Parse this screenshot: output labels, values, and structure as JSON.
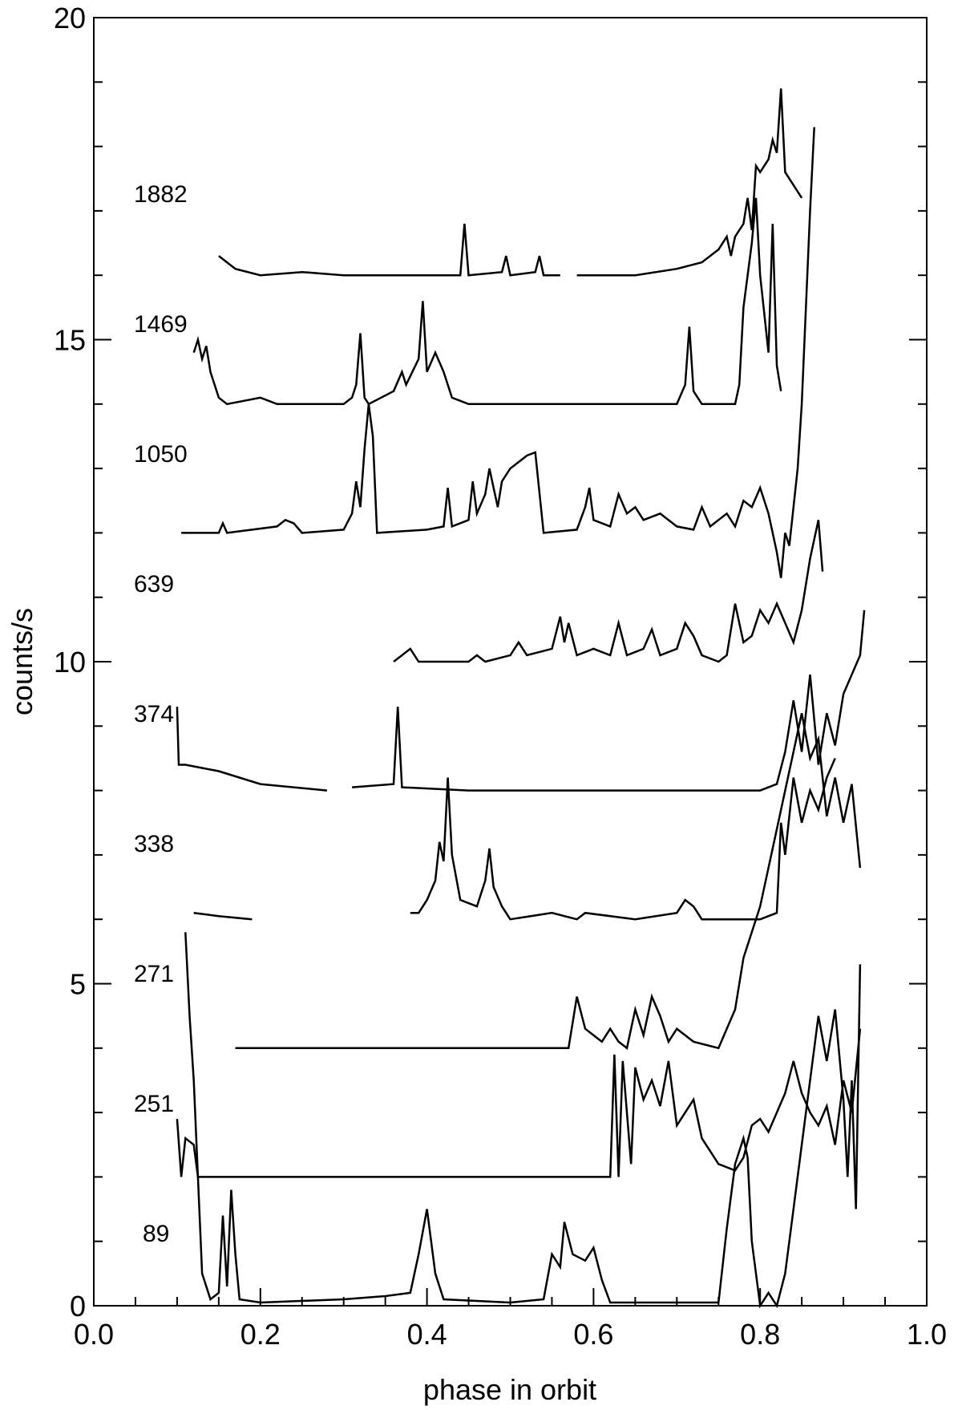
{
  "chart_data": {
    "type": "line",
    "xlabel": "phase in orbit",
    "ylabel": "counts/s",
    "xlim": [
      0,
      1
    ],
    "ylim": [
      0,
      20
    ],
    "xticks": [
      {
        "value": 0,
        "label": "0.0"
      },
      {
        "value": 0.2,
        "label": "0.2"
      },
      {
        "value": 0.4,
        "label": "0.4"
      },
      {
        "value": 0.6,
        "label": "0.6"
      },
      {
        "value": 0.8,
        "label": "0.8"
      },
      {
        "value": 1,
        "label": "1.0"
      }
    ],
    "yticks": [
      0,
      5,
      10,
      15,
      20
    ],
    "minor_xticks": [
      0.05,
      0.1,
      0.15,
      0.25,
      0.3,
      0.35,
      0.45,
      0.5,
      0.55,
      0.65,
      0.7,
      0.75,
      0.85,
      0.9,
      0.95
    ],
    "minor_yticks": [
      1,
      2,
      3,
      4,
      6,
      7,
      8,
      9,
      11,
      12,
      13,
      14,
      16,
      17,
      18,
      19
    ],
    "series": [
      {
        "name": "1882",
        "color": "#000000",
        "x": [
          0.15,
          0.17,
          0.2,
          0.25,
          0.3,
          0.35,
          0.4,
          0.44,
          0.445,
          0.45,
          0.49,
          0.495,
          0.5,
          0.53,
          0.535,
          0.54,
          0.56,
          null,
          0.58,
          0.65,
          0.7,
          0.73,
          0.75,
          0.76,
          0.765,
          0.77,
          0.78,
          0.785,
          0.79,
          0.795,
          0.8,
          0.81,
          0.815,
          0.82,
          0.825,
          0.83,
          0.84,
          0.85
        ],
        "values": [
          16.3,
          16.1,
          16,
          16.05,
          16,
          16,
          16,
          16,
          16.8,
          16,
          16.05,
          16.3,
          16,
          16.05,
          16.3,
          16,
          16,
          null,
          16,
          16,
          16.1,
          16.2,
          16.4,
          16.6,
          16.3,
          16.6,
          16.8,
          17.2,
          16.7,
          17.7,
          17.6,
          17.8,
          18.1,
          17.9,
          18.9,
          17.6,
          17.4,
          17.2
        ]
      },
      {
        "name": "1469",
        "color": "#000000",
        "x": [
          0.12,
          0.125,
          0.13,
          0.135,
          0.14,
          0.145,
          0.15,
          0.16,
          0.2,
          0.22,
          0.3,
          0.31,
          0.315,
          0.32,
          0.325,
          0.33,
          0.36,
          0.37,
          0.375,
          0.39,
          0.395,
          0.4,
          0.41,
          0.42,
          0.43,
          0.45,
          0.6,
          0.7,
          0.71,
          0.715,
          0.72,
          0.73,
          0.77,
          0.775,
          0.78,
          0.79,
          0.795,
          0.8,
          0.81,
          0.815,
          0.82,
          0.825
        ],
        "values": [
          14.8,
          15,
          14.7,
          14.9,
          14.5,
          14.3,
          14.1,
          14,
          14.1,
          14,
          14,
          14.1,
          14.3,
          15.1,
          14.1,
          14,
          14.2,
          14.5,
          14.3,
          14.7,
          15.6,
          14.5,
          14.8,
          14.5,
          14.1,
          14,
          14,
          14,
          14.3,
          15.2,
          14.2,
          14,
          14,
          14.3,
          15.5,
          16.5,
          17.2,
          16,
          14.8,
          16.8,
          14.6,
          14.2
        ]
      },
      {
        "name": "1050",
        "color": "#000000",
        "x": [
          0.105,
          0.15,
          0.155,
          0.16,
          0.22,
          0.23,
          0.24,
          0.25,
          0.3,
          0.31,
          0.315,
          0.32,
          0.325,
          0.33,
          0.335,
          0.34,
          0.4,
          0.42,
          0.425,
          0.43,
          0.45,
          0.455,
          0.46,
          0.47,
          0.475,
          0.48,
          0.485,
          0.49,
          0.5,
          0.51,
          0.52,
          0.53,
          0.54,
          0.58,
          0.59,
          0.595,
          0.6,
          0.62,
          0.63,
          0.64,
          0.65,
          0.66,
          0.68,
          0.7,
          0.72,
          0.73,
          0.74,
          0.75,
          0.76,
          0.77,
          0.78,
          0.79,
          0.8,
          0.81,
          0.82,
          0.825,
          0.83,
          0.835,
          0.84,
          0.845,
          0.85,
          0.855,
          0.86,
          0.865
        ],
        "values": [
          12,
          12,
          12.15,
          12,
          12.1,
          12.2,
          12.15,
          12,
          12.05,
          12.3,
          12.8,
          12.4,
          13.3,
          14,
          13.5,
          12,
          12.05,
          12.1,
          12.7,
          12.1,
          12.2,
          12.8,
          12.3,
          12.6,
          13,
          12.7,
          12.4,
          12.8,
          13,
          13.1,
          13.2,
          13.25,
          12,
          12.05,
          12.4,
          12.7,
          12.2,
          12.1,
          12.6,
          12.3,
          12.4,
          12.2,
          12.3,
          12.1,
          12.05,
          12.4,
          12.1,
          12.2,
          12.3,
          12.1,
          12.5,
          12.4,
          12.7,
          12.3,
          11.7,
          11.3,
          12,
          11.8,
          12.4,
          13,
          14,
          15.5,
          17,
          18.3
        ]
      },
      {
        "name": "639",
        "color": "#000000",
        "x": [
          0.36,
          0.37,
          0.38,
          0.39,
          0.45,
          0.46,
          0.47,
          0.5,
          0.51,
          0.52,
          0.55,
          0.56,
          0.565,
          0.57,
          0.58,
          0.6,
          0.62,
          0.63,
          0.64,
          0.66,
          0.67,
          0.68,
          0.7,
          0.71,
          0.72,
          0.73,
          0.75,
          0.76,
          0.77,
          0.78,
          0.79,
          0.8,
          0.81,
          0.82,
          0.83,
          0.84,
          0.85,
          0.86,
          0.87,
          0.875
        ],
        "values": [
          10,
          10.1,
          10.2,
          10,
          10,
          10.1,
          10,
          10.1,
          10.3,
          10.1,
          10.2,
          10.7,
          10.3,
          10.6,
          10.1,
          10.2,
          10.1,
          10.6,
          10.1,
          10.2,
          10.5,
          10.1,
          10.2,
          10.6,
          10.4,
          10.1,
          10,
          10.1,
          10.9,
          10.3,
          10.4,
          10.8,
          10.6,
          10.9,
          10.6,
          10.3,
          10.8,
          11.6,
          12.2,
          11.4
        ]
      },
      {
        "name": "374",
        "color": "#000000",
        "x": [
          0.1,
          0.102,
          0.11,
          0.15,
          0.2,
          0.28,
          null,
          0.31,
          0.36,
          0.365,
          0.37,
          0.45,
          0.6,
          0.7,
          0.8,
          0.82,
          0.83,
          0.84,
          0.85,
          0.86,
          0.87,
          0.88,
          0.89,
          0.9,
          0.91,
          0.92,
          0.925
        ],
        "values": [
          9.3,
          8.4,
          8.4,
          8.3,
          8.1,
          8,
          null,
          8.05,
          8.1,
          9.3,
          8.05,
          8,
          8,
          8,
          8,
          8.1,
          8.6,
          9.4,
          8.6,
          9.8,
          8.4,
          9.2,
          8.7,
          9.5,
          9.8,
          10.1,
          10.8
        ]
      },
      {
        "name": "338",
        "color": "#000000",
        "x": [
          0.12,
          0.15,
          0.19,
          null,
          0.38,
          0.39,
          0.4,
          0.41,
          0.415,
          0.42,
          0.425,
          0.43,
          0.44,
          0.46,
          0.47,
          0.475,
          0.48,
          0.49,
          0.5,
          0.55,
          0.58,
          0.59,
          0.65,
          0.7,
          0.71,
          0.72,
          0.73,
          0.8,
          0.82,
          0.825,
          0.83,
          0.84,
          0.85,
          0.86,
          0.87,
          0.88,
          0.89
        ],
        "values": [
          6.1,
          6.05,
          6,
          null,
          6.1,
          6.1,
          6.3,
          6.6,
          7.2,
          6.9,
          8.2,
          7,
          6.3,
          6.2,
          6.6,
          7.1,
          6.5,
          6.2,
          6,
          6.1,
          6,
          6.1,
          6,
          6.1,
          6.3,
          6.2,
          6,
          6,
          6.1,
          7.5,
          7,
          8.2,
          7.5,
          8,
          7.7,
          8.2,
          8.5
        ]
      },
      {
        "name": "271",
        "color": "#000000",
        "x": [
          0.17,
          0.3,
          0.5,
          0.57,
          0.575,
          0.58,
          0.59,
          0.6,
          0.61,
          0.62,
          0.63,
          0.64,
          0.65,
          0.66,
          0.67,
          0.68,
          0.69,
          0.7,
          0.72,
          0.75,
          0.76,
          0.77,
          0.78,
          0.79,
          0.8,
          0.81,
          0.82,
          0.83,
          0.84,
          0.85,
          0.86,
          0.87,
          0.88,
          0.89,
          0.9,
          0.91,
          0.92
        ],
        "values": [
          4,
          4,
          4,
          4,
          4.4,
          4.8,
          4.3,
          4.2,
          4.1,
          4.3,
          4.1,
          4,
          4.6,
          4.2,
          4.8,
          4.5,
          4.1,
          4.3,
          4.1,
          4,
          4.3,
          4.6,
          5.4,
          5.8,
          6.2,
          6.8,
          7.4,
          8,
          8.6,
          9.2,
          8.5,
          8.8,
          7.6,
          8.2,
          7.5,
          8.1,
          6.8
        ]
      },
      {
        "name": "251",
        "color": "#000000",
        "x": [
          0.1,
          0.105,
          0.11,
          0.12,
          0.125,
          0.2,
          0.3,
          0.4,
          0.5,
          0.6,
          0.62,
          0.625,
          0.63,
          0.635,
          0.645,
          0.65,
          0.66,
          0.67,
          0.68,
          0.69,
          0.7,
          0.72,
          0.73,
          0.75,
          0.77,
          0.78,
          0.79,
          0.8,
          0.81,
          0.82,
          0.83,
          0.84,
          0.85,
          0.86,
          0.87,
          0.88,
          0.89,
          0.9,
          0.91,
          0.92
        ],
        "values": [
          2.9,
          2,
          2.6,
          2.5,
          2,
          2,
          2,
          2,
          2,
          2,
          2,
          3.9,
          2,
          3.8,
          2.2,
          3.7,
          3.2,
          3.5,
          3.1,
          3.8,
          2.8,
          3.2,
          2.6,
          2.2,
          2.1,
          2.3,
          2.8,
          2.9,
          2.7,
          3,
          3.3,
          3.8,
          3.3,
          3,
          2.8,
          3.1,
          2.5,
          3.5,
          3,
          4.3
        ]
      },
      {
        "name": "89",
        "color": "#000000",
        "x": [
          0.11,
          0.115,
          0.12,
          0.125,
          0.13,
          0.14,
          0.15,
          0.155,
          0.16,
          0.165,
          0.17,
          0.175,
          0.2,
          0.3,
          0.35,
          0.38,
          0.39,
          0.4,
          0.41,
          0.42,
          0.5,
          0.54,
          0.55,
          0.56,
          0.565,
          0.575,
          0.59,
          0.6,
          0.61,
          0.62,
          0.7,
          0.75,
          0.76,
          0.77,
          0.78,
          0.785,
          0.79,
          0.8,
          0.81,
          0.82,
          0.83,
          0.84,
          0.85,
          0.86,
          0.87,
          0.88,
          0.89,
          0.9,
          0.905,
          0.91,
          0.915,
          0.92
        ],
        "values": [
          5.8,
          4.5,
          3.5,
          2,
          0.5,
          0.1,
          0.2,
          1.4,
          0.3,
          1.8,
          0.8,
          0.1,
          0.05,
          0.1,
          0.15,
          0.2,
          0.8,
          1.5,
          0.5,
          0.1,
          0.05,
          0.1,
          0.8,
          0.6,
          1.3,
          0.8,
          0.7,
          0.9,
          0.4,
          0.05,
          0.05,
          0.05,
          1.2,
          2.2,
          2.6,
          2.3,
          1,
          0,
          0.2,
          0,
          0.5,
          1.5,
          2.5,
          3.5,
          4.5,
          3.8,
          4.6,
          3.2,
          2,
          3.5,
          1.5,
          5.3
        ]
      }
    ]
  }
}
